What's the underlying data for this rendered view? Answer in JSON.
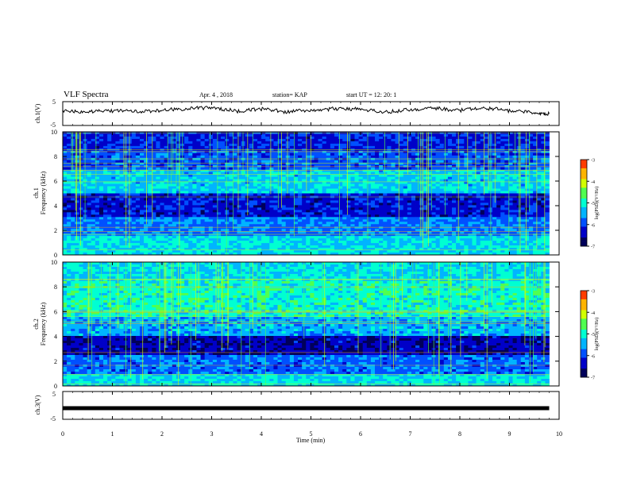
{
  "header": {
    "title": "VLF Spectra",
    "date": "Apr. 4 , 2018",
    "station": "station= KAP",
    "start_time": "start  UT =  12: 20: 1"
  },
  "chart_data": [
    {
      "type": "line",
      "name": "ch1-waveform",
      "ylabel": "ch.1(V)",
      "ylim": [
        -5,
        5
      ],
      "yticks": [
        "5",
        "-5"
      ],
      "x": [
        0.0,
        0.5,
        1.0,
        1.5,
        2.0,
        2.5,
        3.0,
        3.5,
        4.0,
        4.5,
        5.0,
        5.5,
        6.0,
        6.5,
        7.0,
        7.5,
        8.0,
        8.5,
        9.0,
        9.5,
        9.8
      ],
      "y": [
        1.0,
        0.6,
        1.2,
        0.7,
        1.5,
        2.0,
        2.6,
        1.0,
        1.9,
        0.7,
        1.4,
        2.1,
        1.8,
        0.6,
        1.7,
        2.2,
        1.3,
        2.4,
        1.2,
        0.4,
        -0.1
      ],
      "color": "#000000"
    },
    {
      "type": "heatmap",
      "name": "ch1-spectrogram",
      "ylabel": "ch.1\nFrequency  (kHz)",
      "ylim": [
        0,
        10
      ],
      "yticks": [
        "0",
        "2",
        "4",
        "6",
        "8",
        "10"
      ],
      "colorbar": {
        "label": "log(PSD)(V²/Hz)",
        "range": [
          -7,
          -3
        ],
        "ticks": [
          "-3",
          "-4",
          "-5",
          "-6",
          "-7"
        ]
      }
    },
    {
      "type": "heatmap",
      "name": "ch2-spectrogram",
      "ylabel": "ch.2\nFrequency  (kHz)",
      "ylim": [
        0,
        10
      ],
      "yticks": [
        "0",
        "2",
        "4",
        "6",
        "8",
        "10"
      ],
      "colorbar": {
        "label": "log(PSD)(V²/Hz)",
        "range": [
          -7,
          -3
        ],
        "ticks": [
          "-3",
          "-4",
          "-5",
          "-6",
          "-7"
        ]
      }
    },
    {
      "type": "line",
      "name": "ch3-waveform",
      "ylabel": "ch.3(V)",
      "ylim": [
        -5,
        5
      ],
      "yticks": [
        "5",
        "-5"
      ],
      "x": [
        0,
        9.8
      ],
      "y": [
        -1,
        -1
      ],
      "color": "#000000"
    }
  ],
  "xaxis": {
    "label": "Time  (min)",
    "range": [
      0,
      10
    ],
    "ticks": [
      "0",
      "1",
      "2",
      "3",
      "4",
      "5",
      "6",
      "7",
      "8",
      "9",
      "10"
    ]
  },
  "colors": {
    "colormap": [
      "#00005a",
      "#0000c8",
      "#0050ff",
      "#00b4ff",
      "#00ffd2",
      "#50ff50",
      "#d2ff00",
      "#ffb400",
      "#ff3c00",
      "#c80000",
      "#ffffff"
    ]
  }
}
